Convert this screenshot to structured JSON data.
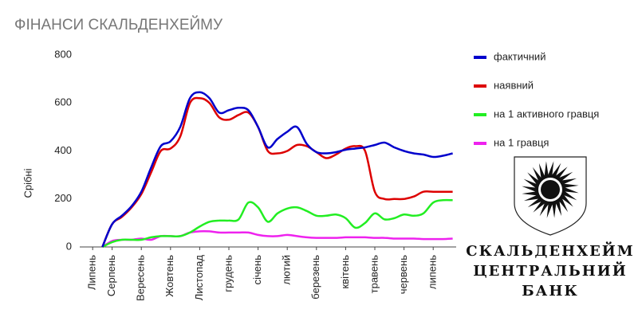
{
  "chart_data": {
    "type": "line",
    "title": "ФІНАНСИ СКАЛЬДЕНХЕЙМУ",
    "y_label": "Срібні",
    "categories": [
      null,
      "Липень",
      null,
      "Серпень",
      null,
      null,
      "Вересень",
      null,
      null,
      "Жовтень",
      null,
      null,
      "Листопад",
      null,
      null,
      "грудень",
      null,
      null,
      "січень",
      null,
      null,
      "лютий",
      null,
      null,
      "березень",
      null,
      null,
      "квітень",
      null,
      null,
      "травень",
      null,
      null,
      "червень",
      null,
      null,
      "липень",
      null,
      null
    ],
    "series": [
      {
        "name": "фактичний",
        "color": "#0000cc",
        "values": [
          null,
          null,
          0,
          95,
          130,
          170,
          230,
          330,
          420,
          440,
          500,
          620,
          645,
          620,
          560,
          570,
          580,
          570,
          500,
          415,
          450,
          480,
          500,
          430,
          395,
          390,
          395,
          405,
          410,
          415,
          425,
          435,
          415,
          400,
          390,
          385,
          375,
          380,
          390
        ]
      },
      {
        "name": "наявний",
        "color": "#dd0000",
        "values": [
          null,
          null,
          0,
          95,
          125,
          165,
          220,
          310,
          400,
          410,
          460,
          600,
          620,
          600,
          540,
          530,
          550,
          560,
          500,
          400,
          390,
          400,
          425,
          420,
          395,
          370,
          385,
          410,
          420,
          400,
          230,
          200,
          200,
          200,
          210,
          230,
          230,
          230,
          230
        ]
      },
      {
        "name": "на 1 активного гравця",
        "color": "#22ee22",
        "values": [
          null,
          null,
          0,
          20,
          30,
          30,
          30,
          40,
          45,
          45,
          45,
          60,
          85,
          105,
          110,
          110,
          115,
          185,
          165,
          105,
          140,
          160,
          165,
          150,
          130,
          130,
          135,
          120,
          80,
          100,
          140,
          115,
          120,
          135,
          130,
          140,
          185,
          195,
          195
        ]
      },
      {
        "name": "на 1 гравця",
        "color": "#ee22ee",
        "values": [
          null,
          null,
          0,
          25,
          30,
          30,
          35,
          30,
          45,
          45,
          45,
          60,
          65,
          65,
          60,
          60,
          60,
          60,
          50,
          45,
          45,
          50,
          45,
          40,
          38,
          38,
          38,
          40,
          40,
          40,
          38,
          38,
          35,
          35,
          35,
          33,
          33,
          33,
          35
        ]
      }
    ],
    "ylim": [
      0,
      800
    ],
    "yticks": [
      0,
      200,
      400,
      600,
      800
    ],
    "grid": false,
    "legend": "right"
  },
  "logo": {
    "lines": [
      "СКАЛЬДЕНХЕЙМ",
      "ЦЕНТРАЛЬНИЙ",
      "БАНК"
    ]
  }
}
